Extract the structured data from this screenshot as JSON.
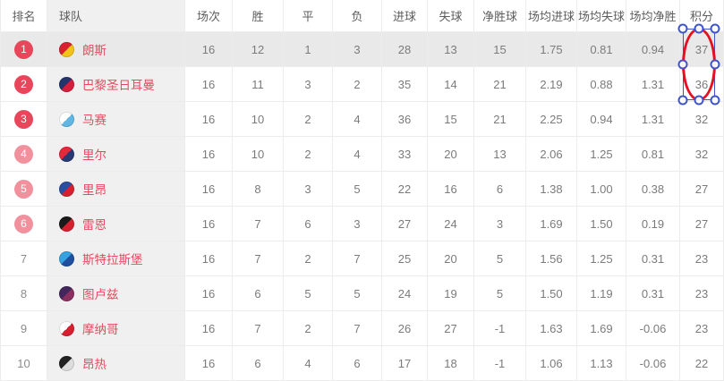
{
  "table": {
    "columns": [
      {
        "key": "rank",
        "label": "排名"
      },
      {
        "key": "team",
        "label": "球队"
      },
      {
        "key": "played",
        "label": "场次"
      },
      {
        "key": "win",
        "label": "胜"
      },
      {
        "key": "draw",
        "label": "平"
      },
      {
        "key": "loss",
        "label": "负"
      },
      {
        "key": "goals_for",
        "label": "进球"
      },
      {
        "key": "goals_against",
        "label": "失球"
      },
      {
        "key": "goal_diff",
        "label": "净胜球"
      },
      {
        "key": "avg_goals_for",
        "label": "场均进球"
      },
      {
        "key": "avg_goals_against",
        "label": "场均失球"
      },
      {
        "key": "avg_goal_diff",
        "label": "场均净胜"
      },
      {
        "key": "points",
        "label": "积分"
      }
    ],
    "rows": [
      {
        "rank": 1,
        "team": "朗斯",
        "badge": "strong",
        "highlighted": true,
        "logo_colors": [
          "#d6202f",
          "#f2c419"
        ],
        "played": 16,
        "win": 12,
        "draw": 1,
        "loss": 3,
        "goals_for": 28,
        "goals_against": 13,
        "goal_diff": 15,
        "avg_goals_for": "1.75",
        "avg_goals_against": "0.81",
        "avg_goal_diff": "0.94",
        "points": 37
      },
      {
        "rank": 2,
        "team": "巴黎圣日耳曼",
        "badge": "strong",
        "highlighted": false,
        "logo_colors": [
          "#23356b",
          "#d41e3c"
        ],
        "played": 16,
        "win": 11,
        "draw": 3,
        "loss": 2,
        "goals_for": 35,
        "goals_against": 14,
        "goal_diff": 21,
        "avg_goals_for": "2.19",
        "avg_goals_against": "0.88",
        "avg_goal_diff": "1.31",
        "points": 36
      },
      {
        "rank": 3,
        "team": "马赛",
        "badge": "strong",
        "highlighted": false,
        "logo_colors": [
          "#ffffff",
          "#62b6e3"
        ],
        "played": 16,
        "win": 10,
        "draw": 2,
        "loss": 4,
        "goals_for": 36,
        "goals_against": 15,
        "goal_diff": 21,
        "avg_goals_for": "2.25",
        "avg_goals_against": "0.94",
        "avg_goal_diff": "1.31",
        "points": 32
      },
      {
        "rank": 4,
        "team": "里尔",
        "badge": "light",
        "highlighted": false,
        "logo_colors": [
          "#e4293b",
          "#283a73"
        ],
        "played": 16,
        "win": 10,
        "draw": 2,
        "loss": 4,
        "goals_for": 33,
        "goals_against": 20,
        "goal_diff": 13,
        "avg_goals_for": "2.06",
        "avg_goals_against": "1.25",
        "avg_goal_diff": "0.81",
        "points": 32
      },
      {
        "rank": 5,
        "team": "里昂",
        "badge": "light",
        "highlighted": false,
        "logo_colors": [
          "#2b4f9e",
          "#d6202f"
        ],
        "played": 16,
        "win": 8,
        "draw": 3,
        "loss": 5,
        "goals_for": 22,
        "goals_against": 16,
        "goal_diff": 6,
        "avg_goals_for": "1.38",
        "avg_goals_against": "1.00",
        "avg_goal_diff": "0.38",
        "points": 27
      },
      {
        "rank": 6,
        "team": "雷恩",
        "badge": "light",
        "highlighted": false,
        "logo_colors": [
          "#1a1a1a",
          "#d6202f"
        ],
        "played": 16,
        "win": 7,
        "draw": 6,
        "loss": 3,
        "goals_for": 27,
        "goals_against": 24,
        "goal_diff": 3,
        "avg_goals_for": "1.69",
        "avg_goals_against": "1.50",
        "avg_goal_diff": "0.19",
        "points": 27
      },
      {
        "rank": 7,
        "team": "斯特拉斯堡",
        "badge": "none",
        "highlighted": false,
        "logo_colors": [
          "#38a1e0",
          "#1f4f9e"
        ],
        "played": 16,
        "win": 7,
        "draw": 2,
        "loss": 7,
        "goals_for": 25,
        "goals_against": 20,
        "goal_diff": 5,
        "avg_goals_for": "1.56",
        "avg_goals_against": "1.25",
        "avg_goal_diff": "0.31",
        "points": 23
      },
      {
        "rank": 8,
        "team": "图卢兹",
        "badge": "none",
        "highlighted": false,
        "logo_colors": [
          "#42275c",
          "#8a3060"
        ],
        "played": 16,
        "win": 6,
        "draw": 5,
        "loss": 5,
        "goals_for": 24,
        "goals_against": 19,
        "goal_diff": 5,
        "avg_goals_for": "1.50",
        "avg_goals_against": "1.19",
        "avg_goal_diff": "0.31",
        "points": 23
      },
      {
        "rank": 9,
        "team": "摩纳哥",
        "badge": "none",
        "highlighted": false,
        "logo_colors": [
          "#ffffff",
          "#d6202f"
        ],
        "played": 16,
        "win": 7,
        "draw": 2,
        "loss": 7,
        "goals_for": 26,
        "goals_against": 27,
        "goal_diff": -1,
        "avg_goals_for": "1.63",
        "avg_goals_against": "1.69",
        "avg_goal_diff": "-0.06",
        "points": 23
      },
      {
        "rank": 10,
        "team": "昂热",
        "badge": "none",
        "highlighted": false,
        "logo_colors": [
          "#222222",
          "#dddddd"
        ],
        "played": 16,
        "win": 6,
        "draw": 4,
        "loss": 6,
        "goals_for": 17,
        "goals_against": 18,
        "goal_diff": -1,
        "avg_goals_for": "1.06",
        "avg_goals_against": "1.13",
        "avg_goal_diff": "-0.06",
        "points": 22
      }
    ]
  },
  "annotation": {
    "shape": "ellipse",
    "ellipse_color": "#e8101e",
    "selection_color": "#3f55cc",
    "handle_count": 8
  },
  "colors": {
    "badge_top3": "#e8475b",
    "badge_4to6": "#f0919d",
    "team_link": "#e34b5f",
    "highlight_row_bg": "#e9e9e9",
    "team_column_bg": "#f0f0f1"
  }
}
